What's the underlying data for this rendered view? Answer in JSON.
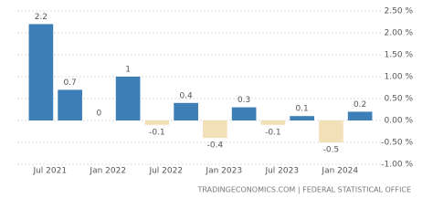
{
  "chart_data": {
    "type": "bar",
    "categories": [
      null,
      null,
      null,
      null,
      null,
      null,
      null,
      null,
      null,
      null,
      null,
      null
    ],
    "values": [
      2.2,
      0.7,
      0,
      1,
      -0.1,
      0.4,
      -0.4,
      0.3,
      -0.1,
      0.1,
      -0.5,
      0.2
    ],
    "xtick_labels": [
      "Jul 2021",
      "Jan 2022",
      "Jul 2022",
      "Jan 2023",
      "Jul 2023",
      "Jan 2024"
    ],
    "positive_color": "#3f7fb8",
    "negative_color": "#f2e0b8",
    "ylim": [
      -1.0,
      2.5
    ],
    "yticks": [
      {
        "value": 2.5,
        "label": "2.50 %"
      },
      {
        "value": 2.0,
        "label": "2.00 %"
      },
      {
        "value": 1.5,
        "label": "1.50 %"
      },
      {
        "value": 1.0,
        "label": "1.00 %"
      },
      {
        "value": 0.5,
        "label": "0.50 %"
      },
      {
        "value": 0.0,
        "label": "0.00 %"
      },
      {
        "value": -0.5,
        "label": "-0.50 %"
      },
      {
        "value": -1.0,
        "label": "-1.00 %"
      }
    ],
    "grid": true,
    "source": "TRADINGECONOMICS.COM | FEDERAL STATISTICAL OFFICE"
  }
}
